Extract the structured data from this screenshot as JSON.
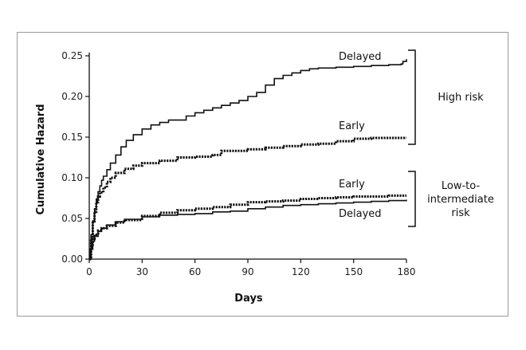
{
  "chart_data": {
    "type": "line",
    "xlabel": "Days",
    "ylabel": "Cumulative Hazard",
    "xlim": [
      0,
      180
    ],
    "ylim": [
      0,
      0.25
    ],
    "xticks": [
      "0",
      "30",
      "60",
      "90",
      "120",
      "150",
      "180"
    ],
    "yticks": [
      "0.00",
      "0.05",
      "0.10",
      "0.15",
      "0.20",
      "0.25"
    ],
    "grid": false,
    "series": [
      {
        "name": "Delayed",
        "group": "High risk",
        "style": "solid",
        "points": [
          [
            0,
            0
          ],
          [
            0.5,
            0.012
          ],
          [
            1,
            0.03
          ],
          [
            2,
            0.047
          ],
          [
            3,
            0.062
          ],
          [
            4,
            0.074
          ],
          [
            5,
            0.083
          ],
          [
            6,
            0.09
          ],
          [
            7,
            0.097
          ],
          [
            8,
            0.102
          ],
          [
            10,
            0.11
          ],
          [
            12,
            0.118
          ],
          [
            15,
            0.128
          ],
          [
            18,
            0.138
          ],
          [
            21,
            0.146
          ],
          [
            25,
            0.153
          ],
          [
            30,
            0.16
          ],
          [
            35,
            0.165
          ],
          [
            40,
            0.168
          ],
          [
            45,
            0.171
          ],
          [
            50,
            0.171
          ],
          [
            55,
            0.176
          ],
          [
            60,
            0.18
          ],
          [
            65,
            0.183
          ],
          [
            70,
            0.186
          ],
          [
            75,
            0.189
          ],
          [
            80,
            0.192
          ],
          [
            85,
            0.195
          ],
          [
            90,
            0.2
          ],
          [
            95,
            0.205
          ],
          [
            100,
            0.214
          ],
          [
            105,
            0.222
          ],
          [
            110,
            0.226
          ],
          [
            115,
            0.229
          ],
          [
            120,
            0.232
          ],
          [
            125,
            0.234
          ],
          [
            130,
            0.235
          ],
          [
            140,
            0.236
          ],
          [
            150,
            0.237
          ],
          [
            160,
            0.238
          ],
          [
            170,
            0.239
          ],
          [
            177,
            0.24
          ],
          [
            178,
            0.243
          ],
          [
            180,
            0.246
          ]
        ]
      },
      {
        "name": "Early",
        "group": "High risk",
        "style": "dotted",
        "points": [
          [
            0,
            0
          ],
          [
            1,
            0.025
          ],
          [
            2,
            0.045
          ],
          [
            3,
            0.058
          ],
          [
            4,
            0.07
          ],
          [
            5,
            0.077
          ],
          [
            6,
            0.082
          ],
          [
            8,
            0.088
          ],
          [
            10,
            0.095
          ],
          [
            12,
            0.1
          ],
          [
            15,
            0.106
          ],
          [
            20,
            0.111
          ],
          [
            25,
            0.115
          ],
          [
            30,
            0.118
          ],
          [
            40,
            0.121
          ],
          [
            50,
            0.125
          ],
          [
            60,
            0.126
          ],
          [
            70,
            0.128
          ],
          [
            75,
            0.133
          ],
          [
            80,
            0.133
          ],
          [
            90,
            0.135
          ],
          [
            100,
            0.137
          ],
          [
            110,
            0.139
          ],
          [
            120,
            0.141
          ],
          [
            130,
            0.142
          ],
          [
            140,
            0.145
          ],
          [
            150,
            0.148
          ],
          [
            160,
            0.149
          ],
          [
            170,
            0.149
          ],
          [
            180,
            0.149
          ]
        ]
      },
      {
        "name": "Early",
        "group": "Low-to-intermediate risk",
        "style": "dotted",
        "points": [
          [
            0,
            0
          ],
          [
            1,
            0.015
          ],
          [
            2,
            0.025
          ],
          [
            3,
            0.03
          ],
          [
            5,
            0.035
          ],
          [
            7,
            0.038
          ],
          [
            10,
            0.041
          ],
          [
            15,
            0.045
          ],
          [
            20,
            0.048
          ],
          [
            30,
            0.053
          ],
          [
            40,
            0.057
          ],
          [
            50,
            0.06
          ],
          [
            60,
            0.062
          ],
          [
            70,
            0.064
          ],
          [
            80,
            0.067
          ],
          [
            90,
            0.07
          ],
          [
            100,
            0.071
          ],
          [
            110,
            0.072
          ],
          [
            120,
            0.074
          ],
          [
            130,
            0.075
          ],
          [
            140,
            0.076
          ],
          [
            150,
            0.077
          ],
          [
            160,
            0.077
          ],
          [
            170,
            0.078
          ],
          [
            180,
            0.078
          ]
        ]
      },
      {
        "name": "Delayed",
        "group": "Low-to-intermediate risk",
        "style": "solid",
        "points": [
          [
            0,
            0
          ],
          [
            1,
            0.012
          ],
          [
            2,
            0.022
          ],
          [
            3,
            0.028
          ],
          [
            5,
            0.034
          ],
          [
            7,
            0.038
          ],
          [
            10,
            0.042
          ],
          [
            15,
            0.046
          ],
          [
            20,
            0.049
          ],
          [
            30,
            0.052
          ],
          [
            40,
            0.054
          ],
          [
            50,
            0.055
          ],
          [
            60,
            0.056
          ],
          [
            70,
            0.058
          ],
          [
            80,
            0.059
          ],
          [
            90,
            0.062
          ],
          [
            100,
            0.064
          ],
          [
            110,
            0.066
          ],
          [
            120,
            0.067
          ],
          [
            130,
            0.068
          ],
          [
            140,
            0.069
          ],
          [
            150,
            0.07
          ],
          [
            160,
            0.071
          ],
          [
            170,
            0.072
          ],
          [
            180,
            0.073
          ]
        ]
      }
    ],
    "annotations": {
      "high_risk": "High risk",
      "low_intermediate_line1": "Low-to-",
      "low_intermediate_line2": "intermediate",
      "low_intermediate_line3": "risk"
    },
    "colors": {
      "line": "#111111",
      "frame": "#9a9a9a",
      "background": "#ffffff"
    }
  }
}
